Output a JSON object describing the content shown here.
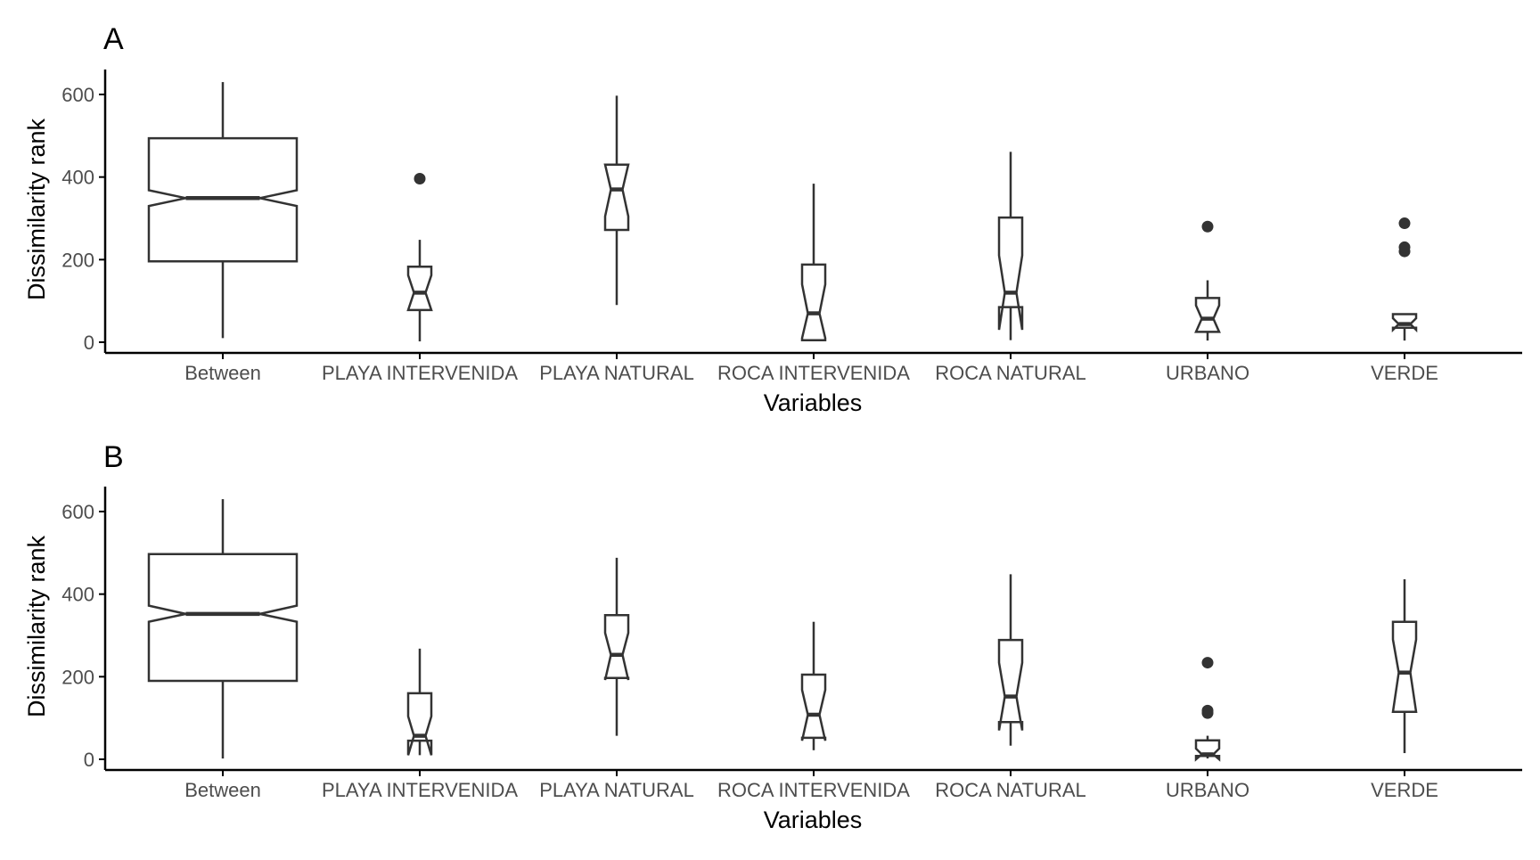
{
  "colors": {
    "stroke": "#333333",
    "text": "#4d4d4d",
    "axis": "#000000",
    "background": "#ffffff"
  },
  "chart_data": [
    {
      "type": "boxplot",
      "panel": "A",
      "xlabel": "Variables",
      "ylabel": "Dissimilarity rank",
      "ylim": [
        -30,
        660
      ],
      "yticks": [
        0,
        200,
        400,
        600
      ],
      "grid": false,
      "notched": true,
      "categories": [
        "Between",
        "PLAYA INTERVENIDA",
        "PLAYA NATURAL",
        "ROCA INTERVENIDA",
        "ROCA NATURAL",
        "URBANO",
        "VERDE"
      ],
      "boxes": [
        {
          "category": "Between",
          "whisker_low": 10,
          "q1": 196,
          "notch_low": 330,
          "median": 349,
          "notch_high": 368,
          "q3": 494,
          "whisker_high": 630,
          "outliers": []
        },
        {
          "category": "PLAYA INTERVENIDA",
          "whisker_low": 2,
          "q1": 78,
          "notch_low": 78,
          "median": 120,
          "notch_high": 162,
          "q3": 183,
          "whisker_high": 248,
          "outliers": [
            396
          ]
        },
        {
          "category": "PLAYA NATURAL",
          "whisker_low": 90,
          "q1": 272,
          "notch_low": 305,
          "median": 370,
          "notch_high": 430,
          "q3": 430,
          "whisker_high": 597,
          "outliers": []
        },
        {
          "category": "ROCA INTERVENIDA",
          "whisker_low": 5,
          "q1": 5,
          "notch_low": 10,
          "median": 70,
          "notch_high": 140,
          "q3": 188,
          "whisker_high": 384,
          "outliers": []
        },
        {
          "category": "ROCA NATURAL",
          "whisker_low": 5,
          "q1": 85,
          "notch_low": 30,
          "median": 120,
          "notch_high": 210,
          "q3": 302,
          "whisker_high": 461,
          "outliers": []
        },
        {
          "category": "URBANO",
          "whisker_low": 4,
          "q1": 25,
          "notch_low": 25,
          "median": 57,
          "notch_high": 89,
          "q3": 107,
          "whisker_high": 150,
          "outliers": [
            280
          ]
        },
        {
          "category": "VERDE",
          "whisker_low": 4,
          "q1": 35,
          "notch_low": 30,
          "median": 44,
          "notch_high": 58,
          "q3": 68,
          "whisker_high": 68,
          "outliers": [
            220,
            230,
            288
          ]
        }
      ]
    },
    {
      "type": "boxplot",
      "panel": "B",
      "xlabel": "Variables",
      "ylabel": "Dissimilarity rank",
      "ylim": [
        -30,
        660
      ],
      "yticks": [
        0,
        200,
        400,
        600
      ],
      "grid": false,
      "notched": true,
      "categories": [
        "Between",
        "PLAYA INTERVENIDA",
        "PLAYA NATURAL",
        "ROCA INTERVENIDA",
        "ROCA NATURAL",
        "URBANO",
        "VERDE"
      ],
      "boxes": [
        {
          "category": "Between",
          "whisker_low": 2,
          "q1": 190,
          "notch_low": 333,
          "median": 352,
          "notch_high": 372,
          "q3": 497,
          "whisker_high": 630,
          "outliers": []
        },
        {
          "category": "PLAYA INTERVENIDA",
          "whisker_low": 10,
          "q1": 45,
          "notch_low": 10,
          "median": 57,
          "notch_high": 104,
          "q3": 160,
          "whisker_high": 268,
          "outliers": []
        },
        {
          "category": "PLAYA NATURAL",
          "whisker_low": 57,
          "q1": 197,
          "notch_low": 192,
          "median": 253,
          "notch_high": 306,
          "q3": 349,
          "whisker_high": 488,
          "outliers": []
        },
        {
          "category": "ROCA INTERVENIDA",
          "whisker_low": 22,
          "q1": 52,
          "notch_low": 45,
          "median": 108,
          "notch_high": 168,
          "q3": 205,
          "whisker_high": 333,
          "outliers": []
        },
        {
          "category": "ROCA NATURAL",
          "whisker_low": 33,
          "q1": 90,
          "notch_low": 70,
          "median": 152,
          "notch_high": 234,
          "q3": 289,
          "whisker_high": 448,
          "outliers": []
        },
        {
          "category": "URBANO",
          "whisker_low": 2,
          "q1": 8,
          "notch_low": 0,
          "median": 12,
          "notch_high": 26,
          "q3": 46,
          "whisker_high": 57,
          "outliers": [
            112,
            118,
            234
          ]
        },
        {
          "category": "VERDE",
          "whisker_low": 15,
          "q1": 115,
          "notch_low": 115,
          "median": 210,
          "notch_high": 290,
          "q3": 333,
          "whisker_high": 436,
          "outliers": []
        }
      ]
    }
  ]
}
